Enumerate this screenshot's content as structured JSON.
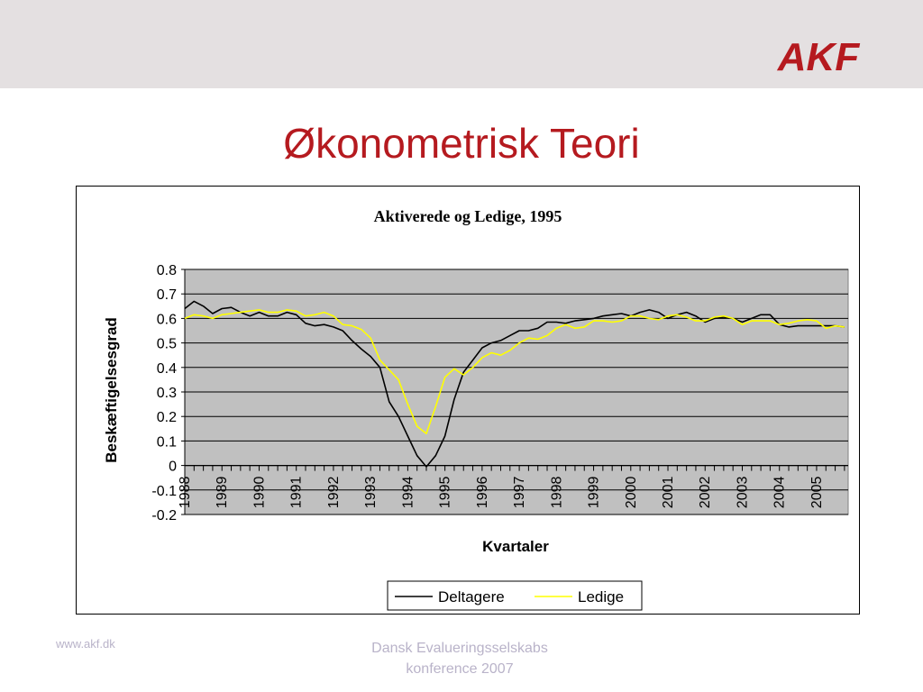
{
  "header": {
    "logo_text": "AKF",
    "brand_color": "#b51a1f",
    "bar_color": "#e4e0e1"
  },
  "slide": {
    "title": "Økonometrisk Teori"
  },
  "footer": {
    "left": "www.akf.dk",
    "center_line1": "Dansk Evalueringsselskabs",
    "center_line2": "konference 2007"
  },
  "chart_data": {
    "type": "line",
    "title": "Aktiverede og Ledige, 1995",
    "xlabel": "Kvartaler",
    "ylabel": "Beskæftigelsesgrad",
    "ylim": [
      -0.2,
      0.8
    ],
    "yticks": [
      "0.8",
      "0.7",
      "0.6",
      "0.5",
      "0.4",
      "0.3",
      "0.2",
      "0.1",
      "0",
      "-0.1",
      "-0.2"
    ],
    "xticks": [
      "1988",
      "1989",
      "1990",
      "1991",
      "1992",
      "1993",
      "1994",
      "1995",
      "1996",
      "1997",
      "1998",
      "1999",
      "2000",
      "2001",
      "2002",
      "2003",
      "2004",
      "2005"
    ],
    "plot_background": "#c0c0c0",
    "grid": true,
    "legend_position": "bottom",
    "series": [
      {
        "name": "Deltagere",
        "color": "#000000",
        "x": [
          1988.0,
          1988.25,
          1988.5,
          1988.75,
          1989.0,
          1989.25,
          1989.5,
          1989.75,
          1990.0,
          1990.25,
          1990.5,
          1990.75,
          1991.0,
          1991.25,
          1991.5,
          1991.75,
          1992.0,
          1992.25,
          1992.5,
          1992.75,
          1993.0,
          1993.25,
          1993.5,
          1993.75,
          1994.0,
          1994.25,
          1994.5,
          1994.75,
          1995.0,
          1995.25,
          1995.5,
          1995.75,
          1996.0,
          1996.25,
          1996.5,
          1996.75,
          1997.0,
          1997.25,
          1997.5,
          1997.75,
          1998.0,
          1998.25,
          1998.5,
          1998.75,
          1999.0,
          1999.25,
          1999.5,
          1999.75,
          2000.0,
          2000.25,
          2000.5,
          2000.75,
          2001.0,
          2001.25,
          2001.5,
          2001.75,
          2002.0,
          2002.25,
          2002.5,
          2002.75,
          2003.0,
          2003.25,
          2003.5,
          2003.75,
          2004.0,
          2004.25,
          2004.5,
          2004.75,
          2005.0,
          2005.25,
          2005.5,
          2005.75
        ],
        "y": [
          0.64,
          0.67,
          0.65,
          0.62,
          0.64,
          0.645,
          0.625,
          0.61,
          0.625,
          0.61,
          0.61,
          0.625,
          0.615,
          0.58,
          0.57,
          0.575,
          0.565,
          0.55,
          0.51,
          0.475,
          0.445,
          0.4,
          0.26,
          0.2,
          0.12,
          0.04,
          -0.005,
          0.04,
          0.12,
          0.27,
          0.38,
          0.43,
          0.48,
          0.5,
          0.51,
          0.53,
          0.55,
          0.55,
          0.56,
          0.585,
          0.585,
          0.58,
          0.59,
          0.595,
          0.6,
          0.61,
          0.615,
          0.62,
          0.61,
          0.625,
          0.635,
          0.625,
          0.6,
          0.615,
          0.625,
          0.61,
          0.585,
          0.6,
          0.605,
          0.6,
          0.585,
          0.6,
          0.615,
          0.615,
          0.575,
          0.565,
          0.57,
          0.57,
          0.57,
          0.57,
          0.57,
          0.565
        ]
      },
      {
        "name": "Ledige",
        "color": "#ffff00",
        "x": [
          1988.0,
          1988.25,
          1988.5,
          1988.75,
          1989.0,
          1989.25,
          1989.5,
          1989.75,
          1990.0,
          1990.25,
          1990.5,
          1990.75,
          1991.0,
          1991.25,
          1991.5,
          1991.75,
          1992.0,
          1992.25,
          1992.5,
          1992.75,
          1993.0,
          1993.25,
          1993.5,
          1993.75,
          1994.0,
          1994.25,
          1994.5,
          1994.75,
          1995.0,
          1995.25,
          1995.5,
          1995.75,
          1996.0,
          1996.25,
          1996.5,
          1996.75,
          1997.0,
          1997.25,
          1997.5,
          1997.75,
          1998.0,
          1998.25,
          1998.5,
          1998.75,
          1999.0,
          1999.25,
          1999.5,
          1999.75,
          2000.0,
          2000.25,
          2000.5,
          2000.75,
          2001.0,
          2001.25,
          2001.5,
          2001.75,
          2002.0,
          2002.25,
          2002.5,
          2002.75,
          2003.0,
          2003.25,
          2003.5,
          2003.75,
          2004.0,
          2004.25,
          2004.5,
          2004.75,
          2005.0,
          2005.25,
          2005.5,
          2005.75
        ],
        "y": [
          0.6,
          0.615,
          0.61,
          0.6,
          0.615,
          0.62,
          0.625,
          0.63,
          0.635,
          0.625,
          0.625,
          0.635,
          0.63,
          0.61,
          0.615,
          0.625,
          0.61,
          0.575,
          0.57,
          0.555,
          0.52,
          0.43,
          0.39,
          0.35,
          0.25,
          0.16,
          0.13,
          0.24,
          0.36,
          0.395,
          0.37,
          0.4,
          0.44,
          0.46,
          0.45,
          0.47,
          0.5,
          0.52,
          0.515,
          0.53,
          0.56,
          0.575,
          0.56,
          0.565,
          0.59,
          0.59,
          0.585,
          0.59,
          0.61,
          0.61,
          0.6,
          0.595,
          0.61,
          0.615,
          0.605,
          0.59,
          0.59,
          0.605,
          0.61,
          0.6,
          0.575,
          0.59,
          0.59,
          0.59,
          0.575,
          0.58,
          0.59,
          0.595,
          0.59,
          0.56,
          0.57,
          0.565
        ]
      }
    ]
  }
}
